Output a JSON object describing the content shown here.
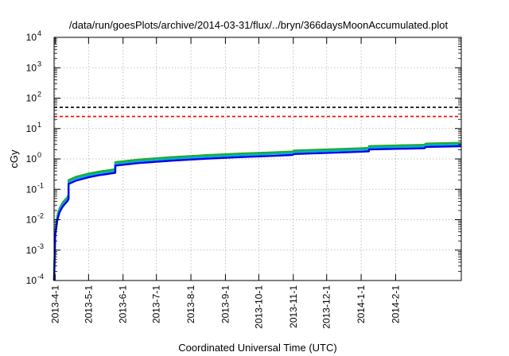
{
  "chart_data": {
    "type": "line",
    "title": "/data/run/goesPlots/archive/2014-03-31/flux/../bryn/366daysMoonAccumulated.plot",
    "xlabel": "Coordinated Universal Time (UTC)",
    "ylabel": "cGy",
    "yscale": "log",
    "ylim": [
      0.0001,
      10000
    ],
    "xlim": [
      "2013-03-31",
      "2014-04-01"
    ],
    "grid": true,
    "legend": "none",
    "x_ticks": [
      "2013-4-1",
      "2013-5-1",
      "2013-6-1",
      "2013-7-1",
      "2013-8-1",
      "2013-9-1",
      "2013-10-1",
      "2013-11-1",
      "2013-12-1",
      "2014-1-1",
      "2014-2-1"
    ],
    "y_ticks": [
      {
        "value": 0.0001,
        "base": "10",
        "exp": "-4"
      },
      {
        "value": 0.001,
        "base": "10",
        "exp": "-3"
      },
      {
        "value": 0.01,
        "base": "10",
        "exp": "-2"
      },
      {
        "value": 0.1,
        "base": "10",
        "exp": "-1"
      },
      {
        "value": 1,
        "base": "10",
        "exp": "0"
      },
      {
        "value": 10,
        "base": "10",
        "exp": "1"
      },
      {
        "value": 100,
        "base": "10",
        "exp": "2"
      },
      {
        "value": 1000,
        "base": "10",
        "exp": "3"
      },
      {
        "value": 10000,
        "base": "10",
        "exp": "4"
      }
    ],
    "reference_lines": [
      {
        "value": 50,
        "color": "#000000",
        "style": "dashed"
      },
      {
        "value": 25,
        "color": "#ff0000",
        "style": "dashed"
      }
    ],
    "series": [
      {
        "color": "#22aa22",
        "points": [
          [
            "2013-03-31",
            0.0001
          ],
          [
            "2013-04-01",
            0.004
          ],
          [
            "2013-04-03",
            0.014
          ],
          [
            "2013-04-05",
            0.024
          ],
          [
            "2013-04-08",
            0.038
          ],
          [
            "2013-04-12",
            0.055
          ],
          [
            "2013-04-13",
            0.065
          ],
          [
            "2013-04-13",
            0.2
          ],
          [
            "2013-04-20",
            0.26
          ],
          [
            "2013-05-01",
            0.33
          ],
          [
            "2013-05-10",
            0.38
          ],
          [
            "2013-05-18",
            0.42
          ],
          [
            "2013-05-25",
            0.46
          ],
          [
            "2013-05-25",
            0.78
          ],
          [
            "2013-06-15",
            0.95
          ],
          [
            "2013-07-15",
            1.15
          ],
          [
            "2013-08-15",
            1.33
          ],
          [
            "2013-09-15",
            1.5
          ],
          [
            "2013-10-15",
            1.65
          ],
          [
            "2013-10-31",
            1.75
          ],
          [
            "2013-11-02",
            1.88
          ],
          [
            "2013-12-01",
            2.05
          ],
          [
            "2014-01-01",
            2.25
          ],
          [
            "2014-01-08",
            2.32
          ],
          [
            "2014-01-08",
            2.65
          ],
          [
            "2014-02-01",
            2.78
          ],
          [
            "2014-02-27",
            2.92
          ],
          [
            "2014-02-28",
            3.2
          ],
          [
            "2014-04-01",
            3.4
          ]
        ]
      },
      {
        "color": "#00b0c8",
        "points": [
          [
            "2013-03-31",
            0.0001
          ],
          [
            "2013-04-01",
            0.0035
          ],
          [
            "2013-04-03",
            0.012
          ],
          [
            "2013-04-05",
            0.021
          ],
          [
            "2013-04-08",
            0.033
          ],
          [
            "2013-04-12",
            0.048
          ],
          [
            "2013-04-13",
            0.057
          ],
          [
            "2013-04-13",
            0.175
          ],
          [
            "2013-04-20",
            0.23
          ],
          [
            "2013-05-01",
            0.29
          ],
          [
            "2013-05-10",
            0.335
          ],
          [
            "2013-05-18",
            0.37
          ],
          [
            "2013-05-25",
            0.405
          ],
          [
            "2013-05-25",
            0.69
          ],
          [
            "2013-06-15",
            0.84
          ],
          [
            "2013-07-15",
            1.02
          ],
          [
            "2013-08-15",
            1.18
          ],
          [
            "2013-09-15",
            1.33
          ],
          [
            "2013-10-15",
            1.47
          ],
          [
            "2013-10-31",
            1.56
          ],
          [
            "2013-11-02",
            1.67
          ],
          [
            "2013-12-01",
            1.83
          ],
          [
            "2014-01-01",
            2.0
          ],
          [
            "2014-01-08",
            2.06
          ],
          [
            "2014-01-08",
            2.36
          ],
          [
            "2014-02-01",
            2.47
          ],
          [
            "2014-02-27",
            2.6
          ],
          [
            "2014-02-28",
            2.85
          ],
          [
            "2014-04-01",
            3.02
          ]
        ]
      },
      {
        "color": "#0000ee",
        "points": [
          [
            "2013-03-31",
            0.0001
          ],
          [
            "2013-04-01",
            0.003
          ],
          [
            "2013-04-03",
            0.01
          ],
          [
            "2013-04-05",
            0.018
          ],
          [
            "2013-04-08",
            0.028
          ],
          [
            "2013-04-12",
            0.041
          ],
          [
            "2013-04-13",
            0.048
          ],
          [
            "2013-04-13",
            0.15
          ],
          [
            "2013-04-20",
            0.195
          ],
          [
            "2013-05-01",
            0.25
          ],
          [
            "2013-05-10",
            0.29
          ],
          [
            "2013-05-18",
            0.32
          ],
          [
            "2013-05-25",
            0.35
          ],
          [
            "2013-05-25",
            0.6
          ],
          [
            "2013-06-15",
            0.73
          ],
          [
            "2013-07-15",
            0.88
          ],
          [
            "2013-08-15",
            1.02
          ],
          [
            "2013-09-15",
            1.15
          ],
          [
            "2013-10-15",
            1.27
          ],
          [
            "2013-10-31",
            1.35
          ],
          [
            "2013-11-02",
            1.45
          ],
          [
            "2013-12-01",
            1.58
          ],
          [
            "2014-01-01",
            1.73
          ],
          [
            "2014-01-08",
            1.78
          ],
          [
            "2014-01-08",
            2.05
          ],
          [
            "2014-02-01",
            2.14
          ],
          [
            "2014-02-27",
            2.25
          ],
          [
            "2014-02-28",
            2.47
          ],
          [
            "2014-04-01",
            2.62
          ]
        ]
      }
    ]
  }
}
